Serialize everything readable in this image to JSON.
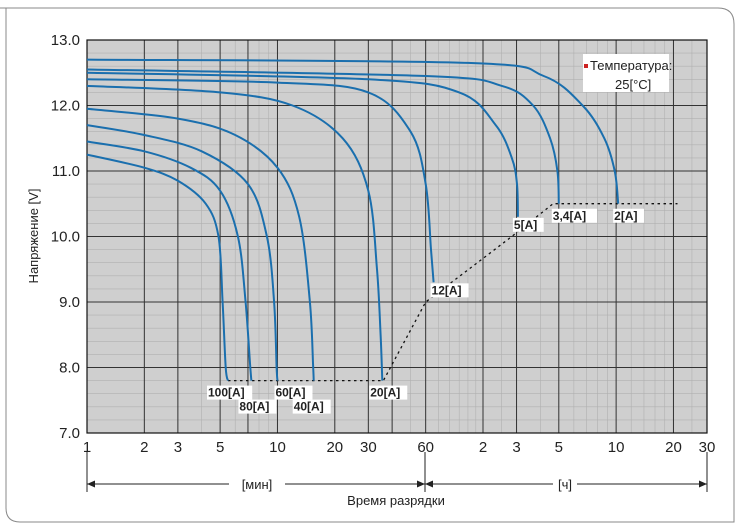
{
  "chart_data": {
    "type": "line",
    "xlabel": "Время разрядки",
    "ylabel": "Напряжение [V]",
    "x_scale": "log",
    "x_unit_minutes_label": "[мин]",
    "x_unit_hours_label": "[ч]",
    "ylim": [
      7.0,
      13.0
    ],
    "yticks": [
      "7.0",
      "8.0",
      "9.0",
      "10.0",
      "11.0",
      "12.0",
      "13.0"
    ],
    "xticks_minutes": [
      {
        "label": "1",
        "value": 1
      },
      {
        "label": "2",
        "value": 2
      },
      {
        "label": "3",
        "value": 3
      },
      {
        "label": "5",
        "value": 5
      },
      {
        "label": "10",
        "value": 10
      },
      {
        "label": "20",
        "value": 20
      },
      {
        "label": "30",
        "value": 30
      },
      {
        "label": "60",
        "value": 60
      }
    ],
    "xticks_hours": [
      {
        "label": "2",
        "value": 120
      },
      {
        "label": "3",
        "value": 180
      },
      {
        "label": "5",
        "value": 300
      },
      {
        "label": "10",
        "value": 600
      },
      {
        "label": "20",
        "value": 1200
      },
      {
        "label": "30",
        "value": 1800
      }
    ],
    "grid": true,
    "legend_text_line1": "Температура:",
    "legend_text_line2": "25[°C]",
    "legend_marker_color": "#cc2222",
    "line_color": "#1a6fae",
    "end_voltage_line": [
      [
        5.5,
        7.8
      ],
      [
        36,
        7.8
      ],
      [
        60,
        9.0
      ],
      [
        170,
        10.0
      ],
      [
        280,
        10.5
      ],
      [
        1260,
        10.5
      ]
    ],
    "series": [
      {
        "label": "100[A]",
        "points": [
          [
            1,
            11.25
          ],
          [
            2,
            11.05
          ],
          [
            3,
            10.85
          ],
          [
            4.2,
            10.5
          ],
          [
            4.9,
            10.0
          ],
          [
            5.15,
            9.0
          ],
          [
            5.35,
            8.0
          ],
          [
            5.5,
            7.8
          ]
        ]
      },
      {
        "label": "80[A]",
        "points": [
          [
            1,
            11.45
          ],
          [
            2,
            11.3
          ],
          [
            3.5,
            11.05
          ],
          [
            5,
            10.7
          ],
          [
            6.2,
            10.0
          ],
          [
            6.8,
            9.0
          ],
          [
            7.2,
            8.0
          ],
          [
            7.3,
            7.8
          ]
        ]
      },
      {
        "label": "60[A]",
        "points": [
          [
            1,
            11.7
          ],
          [
            2,
            11.55
          ],
          [
            4,
            11.3
          ],
          [
            7,
            10.8
          ],
          [
            8.8,
            10.0
          ],
          [
            9.6,
            9.0
          ],
          [
            9.9,
            8.0
          ],
          [
            10,
            7.8
          ]
        ]
      },
      {
        "label": "40[A]",
        "points": [
          [
            1,
            11.95
          ],
          [
            3,
            11.8
          ],
          [
            6,
            11.55
          ],
          [
            10,
            11.05
          ],
          [
            13,
            10.3
          ],
          [
            14.8,
            9.0
          ],
          [
            15.4,
            8.0
          ],
          [
            15.5,
            7.8
          ]
        ]
      },
      {
        "label": "20[A]",
        "points": [
          [
            1,
            12.3
          ],
          [
            5,
            12.2
          ],
          [
            12,
            12.0
          ],
          [
            22,
            11.5
          ],
          [
            30,
            10.7
          ],
          [
            33.3,
            9.5
          ],
          [
            34.8,
            8.5
          ],
          [
            35.5,
            7.8
          ]
        ]
      },
      {
        "label": "12[A]",
        "points": [
          [
            1,
            12.4
          ],
          [
            10,
            12.35
          ],
          [
            30,
            12.2
          ],
          [
            50,
            11.6
          ],
          [
            60,
            10.8
          ],
          [
            64,
            9.8
          ],
          [
            66,
            9.3
          ]
        ]
      },
      {
        "label": "5[A]",
        "points": [
          [
            1,
            12.5
          ],
          [
            30,
            12.4
          ],
          [
            90,
            12.2
          ],
          [
            140,
            11.7
          ],
          [
            170,
            11.2
          ],
          [
            181,
            10.8
          ],
          [
            183,
            10.3
          ]
        ]
      },
      {
        "label": "3,4[A]",
        "points": [
          [
            1,
            12.55
          ],
          [
            60,
            12.45
          ],
          [
            150,
            12.3
          ],
          [
            220,
            12.0
          ],
          [
            270,
            11.5
          ],
          [
            295,
            11.0
          ],
          [
            300,
            10.5
          ]
        ]
      },
      {
        "label": "2[A]",
        "points": [
          [
            1,
            12.7
          ],
          [
            100,
            12.65
          ],
          [
            250,
            12.45
          ],
          [
            400,
            12.0
          ],
          [
            520,
            11.5
          ],
          [
            590,
            11.0
          ],
          [
            615,
            10.5
          ]
        ]
      }
    ],
    "curve_labels": [
      {
        "text": "100[A]",
        "anchor": [
          5.5,
          7.8
        ]
      },
      {
        "text": "80[A]",
        "anchor": [
          7.3,
          7.8
        ]
      },
      {
        "text": "60[A]",
        "anchor": [
          10,
          7.8
        ]
      },
      {
        "text": "40[A]",
        "anchor": [
          15.5,
          7.8
        ]
      },
      {
        "text": "20[A]",
        "anchor": [
          35.5,
          7.8
        ]
      },
      {
        "text": "12[A]",
        "anchor": [
          66,
          9.3
        ]
      },
      {
        "text": "5[A]",
        "anchor": [
          183,
          10.3
        ]
      },
      {
        "text": "3,4[A]",
        "anchor": [
          300,
          10.5
        ]
      },
      {
        "text": "2[A]",
        "anchor": [
          615,
          10.5
        ]
      }
    ]
  }
}
